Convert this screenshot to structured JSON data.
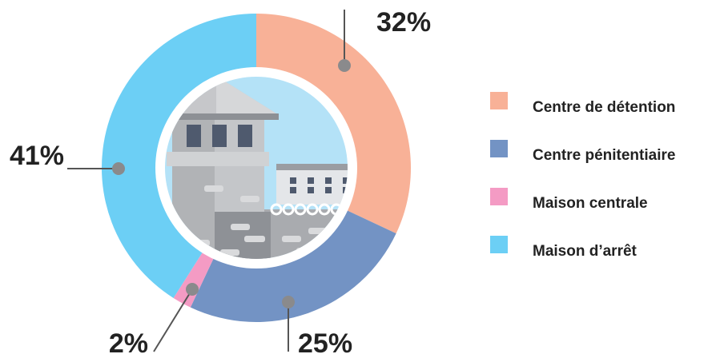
{
  "chart_data": {
    "type": "pie",
    "categories": [
      "Centre de détention",
      "Centre pénitentiaire",
      "Maison centrale",
      "Maison d’arrêt"
    ],
    "values": [
      32,
      25,
      2,
      41
    ],
    "value_labels": [
      "32%",
      "25%",
      "2%",
      "41%"
    ],
    "colors": [
      "#f8b197",
      "#7393c4",
      "#f49bc4",
      "#6ccff5"
    ]
  }
}
